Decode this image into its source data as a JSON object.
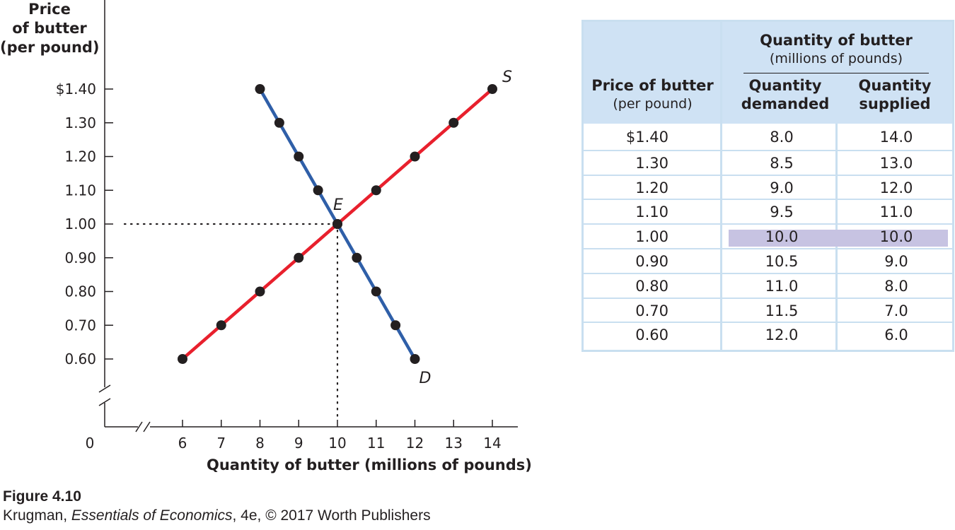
{
  "chart_data": {
    "type": "line",
    "title": "",
    "ylabel_lines": [
      "Price",
      "of butter",
      "(per pound)"
    ],
    "xlabel": "Quantity of butter (millions of pounds)",
    "ylim": [
      0.6,
      1.4
    ],
    "xlim": [
      6,
      14
    ],
    "origin_label": "0",
    "y_ticks": [
      {
        "value": 1.4,
        "label": "$1.40"
      },
      {
        "value": 1.3,
        "label": "1.30"
      },
      {
        "value": 1.2,
        "label": "1.20"
      },
      {
        "value": 1.1,
        "label": "1.10"
      },
      {
        "value": 1.0,
        "label": "1.00"
      },
      {
        "value": 0.9,
        "label": "0.90"
      },
      {
        "value": 0.8,
        "label": "0.80"
      },
      {
        "value": 0.7,
        "label": "0.70"
      },
      {
        "value": 0.6,
        "label": "0.60"
      }
    ],
    "x_ticks": [
      6,
      7,
      8,
      9,
      10,
      11,
      12,
      13,
      14
    ],
    "series": [
      {
        "name": "S",
        "color": "#e8202d",
        "points": [
          [
            6,
            0.6
          ],
          [
            7,
            0.7
          ],
          [
            8,
            0.8
          ],
          [
            9,
            0.9
          ],
          [
            10,
            1.0
          ],
          [
            11,
            1.1
          ],
          [
            12,
            1.2
          ],
          [
            13,
            1.3
          ],
          [
            14,
            1.4
          ]
        ]
      },
      {
        "name": "D",
        "color": "#2f5fa8",
        "points": [
          [
            8,
            1.4
          ],
          [
            8.5,
            1.3
          ],
          [
            9,
            1.2
          ],
          [
            9.5,
            1.1
          ],
          [
            10,
            1.0
          ],
          [
            10.5,
            0.9
          ],
          [
            11,
            0.8
          ],
          [
            11.5,
            0.7
          ],
          [
            12,
            0.6
          ]
        ]
      }
    ],
    "equilibrium": {
      "label": "E",
      "x": 10,
      "y": 1.0
    }
  },
  "table": {
    "header_price": "Price of butter",
    "header_price_sub": "(per pound)",
    "header_group": "Quantity of butter",
    "header_group_sub": "(millions of pounds)",
    "header_qd_1": "Quantity",
    "header_qd_2": "demanded",
    "header_qs_1": "Quantity",
    "header_qs_2": "supplied",
    "rows": [
      {
        "price": "$1.40",
        "qd": "8.0",
        "qs": "14.0"
      },
      {
        "price": "1.30",
        "qd": "8.5",
        "qs": "13.0"
      },
      {
        "price": "1.20",
        "qd": "9.0",
        "qs": "12.0"
      },
      {
        "price": "1.10",
        "qd": "9.5",
        "qs": "11.0"
      },
      {
        "price": "1.00",
        "qd": "10.0",
        "qs": "10.0"
      },
      {
        "price": "0.90",
        "qd": "10.5",
        "qs": "9.0"
      },
      {
        "price": "0.80",
        "qd": "11.0",
        "qs": "8.0"
      },
      {
        "price": "0.70",
        "qd": "11.5",
        "qs": "7.0"
      },
      {
        "price": "0.60",
        "qd": "12.0",
        "qs": "6.0"
      }
    ],
    "highlight_color": "#c7c3e2",
    "border_color": "#c9dff0",
    "header_bg": "#cfe2f4"
  },
  "caption": {
    "figure": "Figure 4.10",
    "author": "Krugman, ",
    "book": "Essentials of Economics",
    "rest": ", 4e, © 2017 Worth Publishers"
  }
}
